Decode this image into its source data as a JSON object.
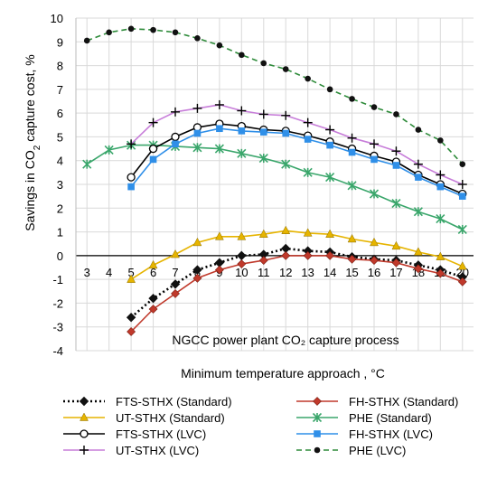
{
  "chart_data": {
    "type": "line",
    "title": "",
    "annotation": "NGCC power plant CO₂ capture process",
    "xlabel": "Minimum temperature approach , °C",
    "ylabel": {
      "pre": "Savings in CO",
      "sub": "2",
      "post": " capture cost, %"
    },
    "xlim": [
      2.5,
      20.5
    ],
    "ylim": [
      -4,
      10
    ],
    "xticks": [
      "3",
      "4",
      "5",
      "6",
      "7",
      "8",
      "9",
      "10",
      "11",
      "12",
      "13",
      "14",
      "15",
      "16",
      "17",
      "18",
      "19",
      "20"
    ],
    "yticks": [
      "-4",
      "-3",
      "-2",
      "-1",
      "0",
      "1",
      "2",
      "3",
      "4",
      "5",
      "6",
      "7",
      "8",
      "9",
      "10"
    ],
    "grid": true,
    "legend_position": "bottom",
    "series": [
      {
        "name": "FTS-STHX (Standard)",
        "color": "#000000",
        "style": "dotted",
        "marker": "diamond-black",
        "x": [
          5,
          6,
          7,
          8,
          9,
          10,
          11,
          12,
          13,
          14,
          15,
          16,
          17,
          18,
          19,
          20
        ],
        "y": [
          -2.6,
          -1.8,
          -1.2,
          -0.6,
          -0.3,
          0.0,
          0.05,
          0.3,
          0.2,
          0.15,
          -0.05,
          -0.15,
          -0.2,
          -0.4,
          -0.6,
          -0.9
        ]
      },
      {
        "name": "FH-STHX (Standard)",
        "color": "#c0392b",
        "style": "solid",
        "marker": "diamond-red",
        "x": [
          5,
          6,
          7,
          8,
          9,
          10,
          11,
          12,
          13,
          14,
          15,
          16,
          17,
          18,
          19,
          20
        ],
        "y": [
          -3.2,
          -2.25,
          -1.6,
          -0.95,
          -0.6,
          -0.35,
          -0.2,
          0.0,
          0.0,
          0.0,
          -0.15,
          -0.2,
          -0.3,
          -0.55,
          -0.75,
          -1.1
        ]
      },
      {
        "name": "UT-STHX (Standard)",
        "color": "#e6b400",
        "style": "solid",
        "marker": "triangle",
        "x": [
          5,
          6,
          7,
          8,
          9,
          10,
          11,
          12,
          13,
          14,
          15,
          16,
          17,
          18,
          19,
          20
        ],
        "y": [
          -1.0,
          -0.4,
          0.05,
          0.55,
          0.8,
          0.8,
          0.9,
          1.05,
          0.95,
          0.9,
          0.7,
          0.55,
          0.4,
          0.15,
          -0.05,
          -0.45
        ]
      },
      {
        "name": "PHE (Standard)",
        "color": "#3aa66b",
        "style": "solid",
        "marker": "star",
        "x": [
          3,
          4,
          5,
          6,
          7,
          8,
          9,
          10,
          11,
          12,
          13,
          14,
          15,
          16,
          17,
          18,
          19,
          20
        ],
        "y": [
          3.85,
          4.45,
          4.65,
          4.65,
          4.6,
          4.55,
          4.5,
          4.3,
          4.1,
          3.85,
          3.5,
          3.3,
          2.95,
          2.6,
          2.2,
          1.85,
          1.55,
          1.1
        ]
      },
      {
        "name": "FTS-STHX (LVC)",
        "color": "#000000",
        "style": "solid",
        "marker": "circle-open",
        "x": [
          5,
          6,
          7,
          8,
          9,
          10,
          11,
          12,
          13,
          14,
          15,
          16,
          17,
          18,
          19,
          20
        ],
        "y": [
          3.3,
          4.5,
          5.0,
          5.4,
          5.55,
          5.45,
          5.3,
          5.25,
          5.05,
          4.8,
          4.5,
          4.2,
          3.95,
          3.4,
          3.0,
          2.6
        ]
      },
      {
        "name": "FH-STHX (LVC)",
        "color": "#2f8fe8",
        "style": "solid",
        "marker": "square",
        "x": [
          5,
          6,
          7,
          8,
          9,
          10,
          11,
          12,
          13,
          14,
          15,
          16,
          17,
          18,
          19,
          20
        ],
        "y": [
          2.9,
          4.05,
          4.7,
          5.15,
          5.35,
          5.25,
          5.2,
          5.15,
          4.9,
          4.65,
          4.35,
          4.05,
          3.8,
          3.3,
          2.9,
          2.5
        ]
      },
      {
        "name": "UT-STHX (LVC)",
        "color": "#c77dd9",
        "style": "solid",
        "marker": "plus",
        "x": [
          5,
          6,
          7,
          8,
          9,
          10,
          11,
          12,
          13,
          14,
          15,
          16,
          17,
          18,
          19,
          20
        ],
        "y": [
          4.7,
          5.6,
          6.05,
          6.2,
          6.35,
          6.1,
          5.95,
          5.9,
          5.6,
          5.3,
          4.95,
          4.7,
          4.4,
          3.85,
          3.4,
          3.0
        ]
      },
      {
        "name": "PHE (LVC)",
        "color": "#2e8b3a",
        "style": "dashed",
        "marker": "dot-black",
        "x": [
          3,
          4,
          5,
          6,
          7,
          8,
          9,
          10,
          11,
          12,
          13,
          14,
          15,
          16,
          17,
          18,
          19,
          20
        ],
        "y": [
          9.05,
          9.4,
          9.55,
          9.5,
          9.4,
          9.15,
          8.85,
          8.45,
          8.1,
          7.85,
          7.45,
          7.0,
          6.6,
          6.25,
          5.95,
          5.3,
          4.85,
          3.85
        ]
      }
    ]
  }
}
